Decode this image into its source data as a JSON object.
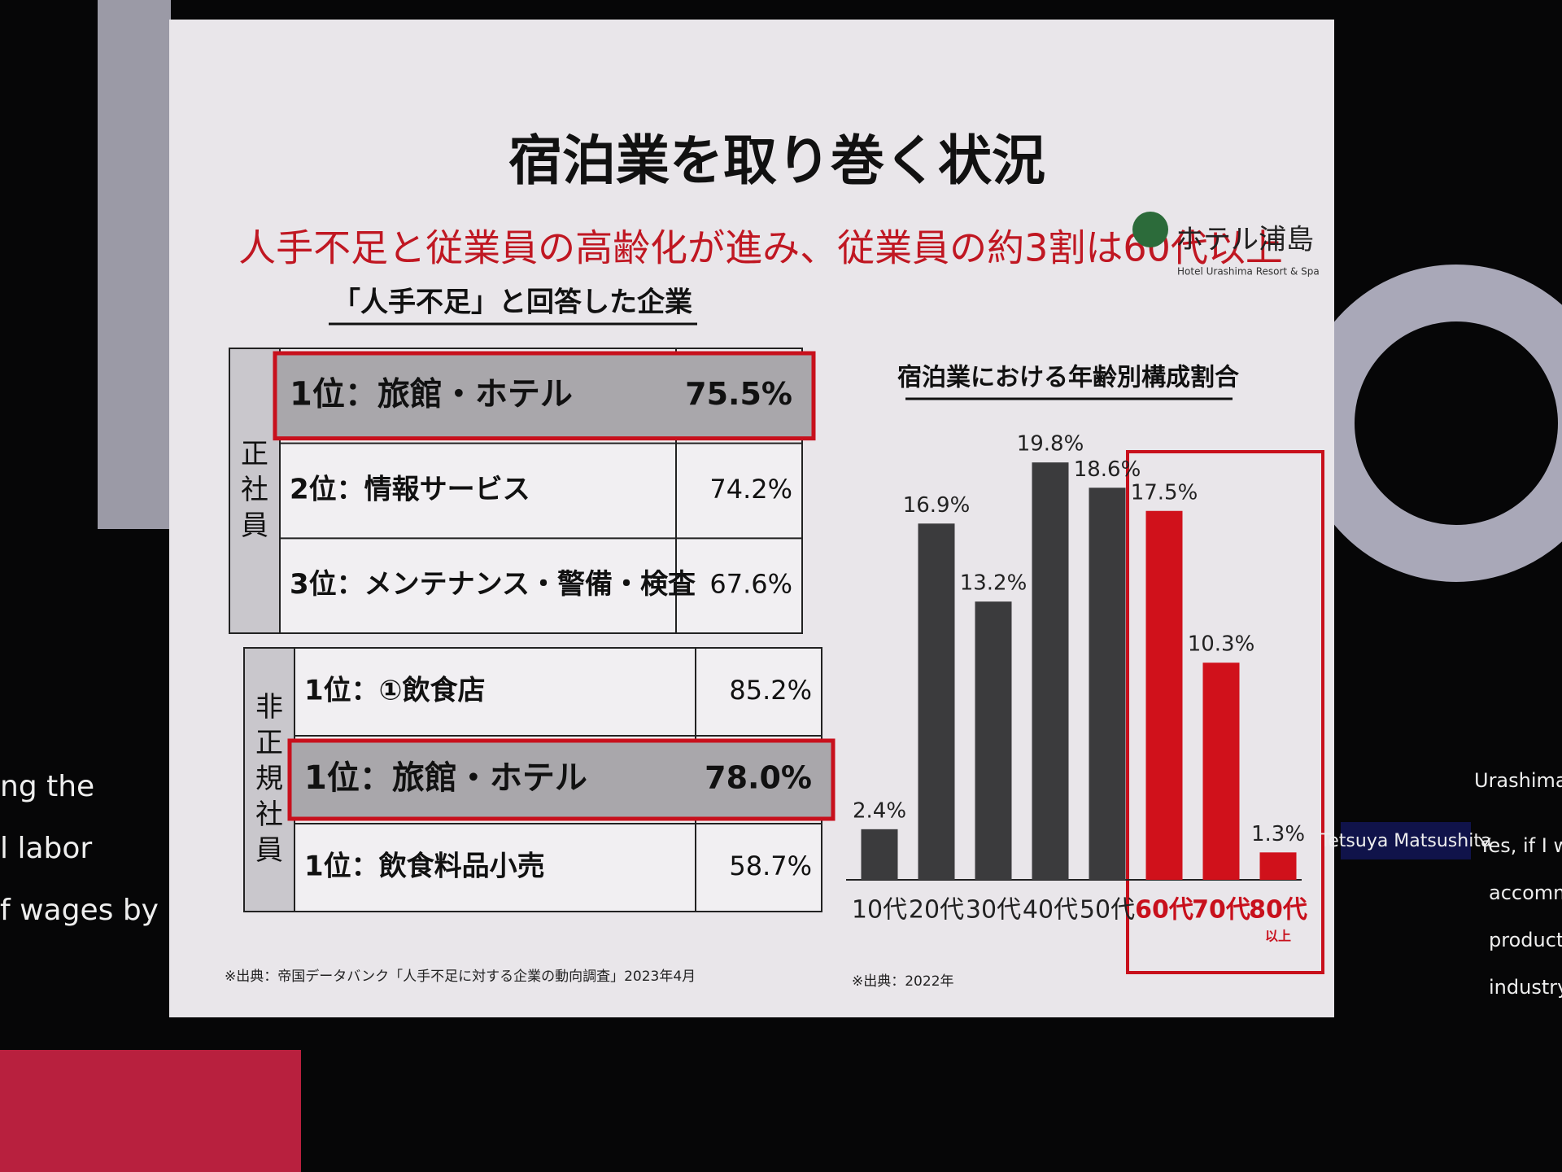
{
  "slide": {
    "title": "宿泊業を取り巻く状況",
    "subtitle": "人手不足と従業員の高齢化が進み、従業員の約3割は60代以上",
    "logo": {
      "name": "ホテル浦島",
      "tagline": "Hotel Urashima Resort & Spa"
    },
    "tables_heading": "「人手不足」と回答した企業",
    "tables": [
      {
        "label": "正社員",
        "highlighted_rows": [
          0
        ],
        "rows": [
          [
            "1位：旅館・ホテル",
            "75.5%"
          ],
          [
            "2位：情報サービス",
            "74.2%"
          ],
          [
            "3位：メンテナンス・警備・検査",
            "67.6%"
          ]
        ]
      },
      {
        "label": "非正規社員",
        "highlighted_rows": [
          1
        ],
        "rows": [
          [
            "1位：①飲食店",
            "85.2%"
          ],
          [
            "1位：旅館・ホテル",
            "78.0%"
          ],
          [
            "1位：飲食料品小売",
            "58.7%"
          ]
        ]
      }
    ],
    "tables_source": "※出典：帝国データバンク「人手不足に対する企業の動向調査」2023年4月"
  },
  "chart_data": {
    "type": "bar",
    "title": "宿泊業における年齢別構成割合",
    "categories": [
      "10代",
      "20代",
      "30代",
      "40代",
      "50代",
      "60代",
      "70代",
      "80代"
    ],
    "category_notes": [
      null,
      null,
      null,
      null,
      null,
      null,
      null,
      "以上"
    ],
    "values": [
      2.4,
      16.9,
      13.2,
      19.8,
      18.6,
      17.5,
      10.3,
      1.3
    ],
    "value_labels": [
      "2.4%",
      "16.9%",
      "13.2%",
      "19.8%",
      "18.6%",
      "17.5%",
      "10.3%",
      "1.3%"
    ],
    "colors": [
      "#3b3b3d",
      "#3b3b3d",
      "#3b3b3d",
      "#3b3b3d",
      "#3b3b3d",
      "#d0111b",
      "#d0111b",
      "#d0111b"
    ],
    "highlight_from": 5,
    "source": "※出典：2022年"
  },
  "overlay": {
    "left_caption": [
      "ng the",
      "l labor",
      "f wages by"
    ],
    "speaker_label": "Urashima Ka",
    "name_tag": "Tetsuya Matsushita",
    "right_caption": [
      "Yes, if I woul",
      "accommoda",
      "productivity",
      "industry, it"
    ]
  }
}
